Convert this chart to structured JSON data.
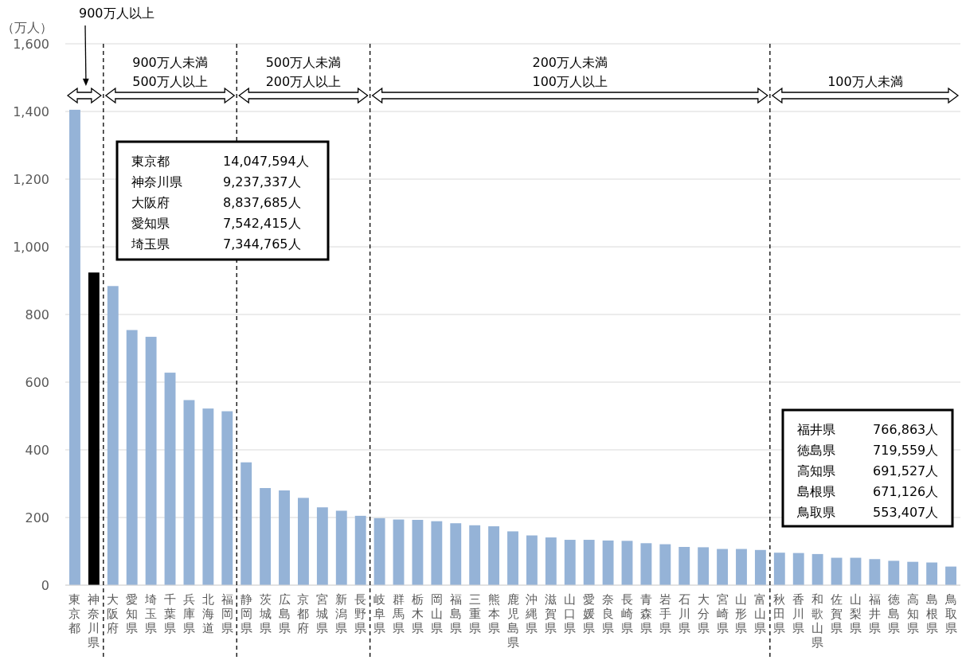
{
  "chart_data": {
    "type": "bar",
    "ylabel": "（万人）",
    "categories": [
      "東京都",
      "神奈川県",
      "大阪府",
      "愛知県",
      "埼玉県",
      "千葉県",
      "兵庫県",
      "北海道",
      "福岡県",
      "静岡県",
      "茨城県",
      "広島県",
      "京都府",
      "宮城県",
      "新潟県",
      "長野県",
      "岐阜県",
      "群馬県",
      "栃木県",
      "岡山県",
      "福島県",
      "三重県",
      "熊本県",
      "鹿児島県",
      "沖縄県",
      "滋賀県",
      "山口県",
      "愛媛県",
      "奈良県",
      "長崎県",
      "青森県",
      "岩手県",
      "石川県",
      "大分県",
      "宮崎県",
      "山形県",
      "富山県",
      "秋田県",
      "香川県",
      "和歌山県",
      "佐賀県",
      "山梨県",
      "福井県",
      "徳島県",
      "高知県",
      "島根県",
      "鳥取県"
    ],
    "values": [
      1405,
      924,
      884,
      754,
      734,
      628,
      547,
      522,
      514,
      363,
      287,
      280,
      258,
      230,
      220,
      205,
      198,
      194,
      193,
      189,
      183,
      177,
      174,
      159,
      147,
      141,
      134,
      134,
      132,
      131,
      124,
      121,
      113,
      112,
      107,
      107,
      104,
      96,
      95,
      92,
      81,
      81,
      77,
      72,
      69,
      67,
      55
    ],
    "colors": [
      "#95b3d7",
      "#000000",
      "#95b3d7",
      "#95b3d7",
      "#95b3d7",
      "#95b3d7",
      "#95b3d7",
      "#95b3d7",
      "#95b3d7",
      "#95b3d7",
      "#95b3d7",
      "#95b3d7",
      "#95b3d7",
      "#95b3d7",
      "#95b3d7",
      "#95b3d7",
      "#95b3d7",
      "#95b3d7",
      "#95b3d7",
      "#95b3d7",
      "#95b3d7",
      "#95b3d7",
      "#95b3d7",
      "#95b3d7",
      "#95b3d7",
      "#95b3d7",
      "#95b3d7",
      "#95b3d7",
      "#95b3d7",
      "#95b3d7",
      "#95b3d7",
      "#95b3d7",
      "#95b3d7",
      "#95b3d7",
      "#95b3d7",
      "#95b3d7",
      "#95b3d7",
      "#95b3d7",
      "#95b3d7",
      "#95b3d7",
      "#95b3d7",
      "#95b3d7",
      "#95b3d7",
      "#95b3d7",
      "#95b3d7",
      "#95b3d7",
      "#95b3d7"
    ],
    "ylim": [
      0,
      1600
    ],
    "yticks": [
      0,
      {
        "value": 200,
        "label": "200"
      },
      {
        "value": 400,
        "label": "400"
      },
      {
        "value": 600,
        "label": "600"
      },
      {
        "value": 800,
        "label": "800"
      },
      {
        "value": 1000,
        "label": "1,000"
      },
      {
        "value": 1200,
        "label": "1,200"
      },
      {
        "value": 1400,
        "label": "1,400"
      },
      {
        "value": 1600,
        "label": "1,600"
      }
    ],
    "grid": "y",
    "annotations": [
      "900万人以上",
      "900万人未満",
      "500万人以上",
      "500万人未満",
      "200万人以上",
      "200万人未満",
      "100万人以上",
      "100万人未満",
      "東京都 14,047,594人",
      "神奈川県 9,237,337人",
      "大阪府 8,837,685人",
      "愛知県 7,542,415人",
      "埼玉県 7,344,765人",
      "福井県 766,863人",
      "徳島県 719,559人",
      "高知県 691,527人",
      "島根県 671,126人",
      "鳥取県 553,407人"
    ]
  }
}
